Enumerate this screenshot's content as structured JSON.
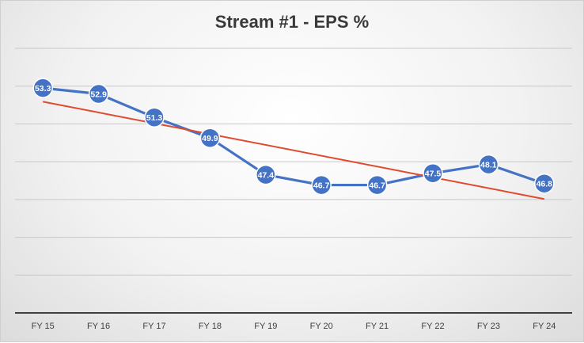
{
  "chart_data": {
    "type": "line",
    "title": "Stream #1 - EPS %",
    "categories": [
      "FY 15",
      "FY 16",
      "FY 17",
      "FY 18",
      "FY 19",
      "FY 20",
      "FY 21",
      "FY 22",
      "FY 23",
      "FY 24"
    ],
    "series": [
      {
        "values": [
          53.3,
          52.9,
          51.3,
          49.9,
          47.4,
          46.7,
          46.7,
          47.5,
          48.1,
          46.8
        ],
        "color": "#4472C4"
      }
    ],
    "trendline": {
      "type": "linear",
      "color": "#E04A2F"
    },
    "data_labels": [
      "53.3",
      "52.9",
      "51.3",
      "49.9",
      "47.4",
      "46.7",
      "46.7",
      "47.5",
      "48.1",
      "46.8"
    ],
    "ylim": [
      38,
      56
    ],
    "grid": true,
    "legend": "none",
    "xlabel": "",
    "ylabel": ""
  }
}
